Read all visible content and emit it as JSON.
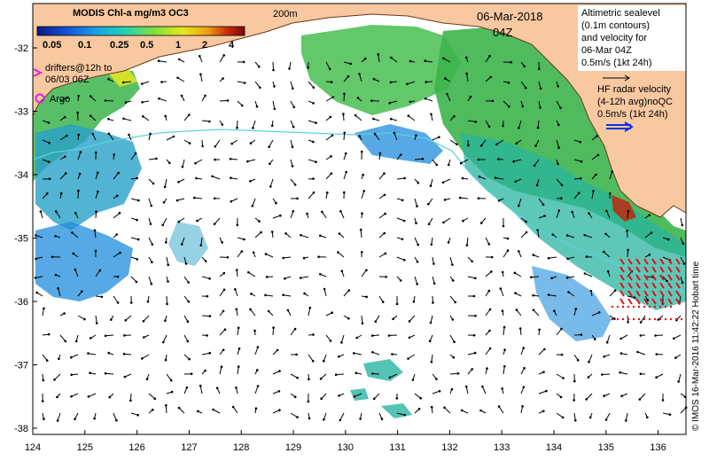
{
  "colorbar": {
    "title": "MODIS Chl-a mg/m3 OC3",
    "ticks": [
      "0.05",
      "0.1",
      "0.25",
      "0.5",
      "1",
      "2",
      "4"
    ],
    "stops": [
      "#0a1a8c",
      "#1450d2",
      "#1aa0e6",
      "#20d2b4",
      "#7de03c",
      "#e8e81e",
      "#f0a014",
      "#c8280a",
      "#7a0a0a"
    ]
  },
  "labels": {
    "contour_200m": "200m",
    "date": "06-Mar-2018",
    "time": "04Z",
    "drifters": [
      "drifters@12h to",
      "06/03 06Z"
    ],
    "argo": "Argo",
    "altimetry": [
      "Altimetric sealevel",
      "(0.1m contours)",
      "and velocity for",
      "06-Mar 04Z",
      "0.5m/s (1kt 24h)"
    ],
    "hf_radar": [
      "HF radar velocity",
      "(4-12h avg)noQC",
      "0.5m/s (1kt 24h)"
    ],
    "credit": "© IMOS 16-Mar-2016 11:42:22 Hobart time"
  },
  "axes": {
    "lon_ticks": [
      "124",
      "125",
      "126",
      "127",
      "128",
      "129",
      "130",
      "131",
      "132",
      "133",
      "134",
      "135",
      "136"
    ],
    "lat_ticks": [
      "-32",
      "-33",
      "-34",
      "-35",
      "-36",
      "-37",
      "-38"
    ]
  },
  "colors": {
    "land": "#f8c8a0",
    "ocean": "#ffffff",
    "contour": "#5ad2dc",
    "chl_green": "#3cb44b",
    "chl_teal": "#28b4a0",
    "chl_blue": "#1e8cdc",
    "hf_red": "#e01010",
    "drifter": "#e020e0"
  }
}
